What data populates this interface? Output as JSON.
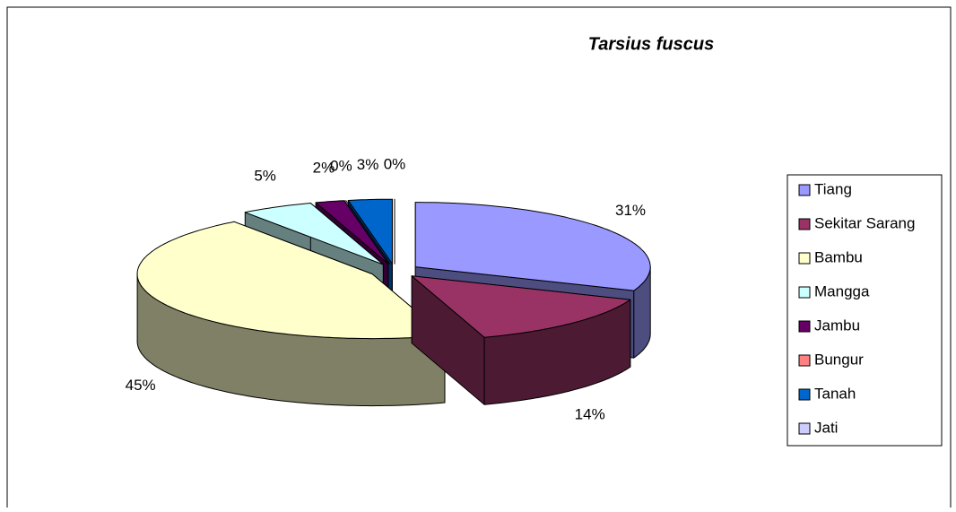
{
  "chart_data": {
    "type": "pie",
    "title": "Tarsius fuscus",
    "categories": [
      "Tiang",
      "Sekitar Sarang",
      "Bambu",
      "Mangga",
      "Jambu",
      "Bungur",
      "Tanah",
      "Jati"
    ],
    "values": [
      31,
      14,
      45,
      5,
      2,
      0,
      3,
      0
    ],
    "value_labels": [
      "31%",
      "14%",
      "45%",
      "5%",
      "2%",
      "0%",
      "3%",
      "0%"
    ],
    "colors": [
      "#9999ff",
      "#993366",
      "#ffffcc",
      "#ccffff",
      "#660066",
      "#ff8080",
      "#0066cc",
      "#ccccff"
    ],
    "legend": "right"
  }
}
